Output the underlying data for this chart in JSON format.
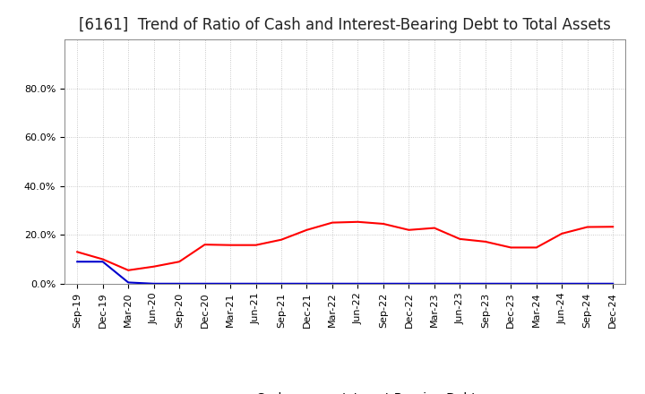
{
  "title": "[6161]  Trend of Ratio of Cash and Interest-Bearing Debt to Total Assets",
  "x_labels": [
    "Sep-19",
    "Dec-19",
    "Mar-20",
    "Jun-20",
    "Sep-20",
    "Dec-20",
    "Mar-21",
    "Jun-21",
    "Sep-21",
    "Dec-21",
    "Mar-22",
    "Jun-22",
    "Sep-22",
    "Dec-22",
    "Mar-23",
    "Jun-23",
    "Sep-23",
    "Dec-23",
    "Mar-24",
    "Jun-24",
    "Sep-24",
    "Dec-24"
  ],
  "cash": [
    0.13,
    0.1,
    0.055,
    0.07,
    0.09,
    0.16,
    0.158,
    0.158,
    0.18,
    0.22,
    0.25,
    0.253,
    0.245,
    0.22,
    0.228,
    0.183,
    0.172,
    0.148,
    0.148,
    0.205,
    0.232,
    0.233
  ],
  "interest_bearing_debt": [
    0.09,
    0.09,
    0.005,
    0.0,
    0.0,
    0.0,
    0.0,
    0.0,
    0.0,
    0.0,
    0.0,
    0.0,
    0.0,
    0.0,
    0.0,
    0.0,
    0.0,
    0.0,
    0.0,
    0.0,
    0.0,
    0.0
  ],
  "cash_color": "#ff0000",
  "debt_color": "#0000cc",
  "bg_color": "#ffffff",
  "plot_bg_color": "#ffffff",
  "grid_color": "#bbbbbb",
  "ylim_min": 0.0,
  "ylim_max": 1.0,
  "yticks": [
    0.0,
    0.2,
    0.4,
    0.6,
    0.8
  ],
  "ytick_labels": [
    "0.0%",
    "20.0%",
    "40.0%",
    "60.0%",
    "80.0%"
  ],
  "legend_cash": "Cash",
  "legend_debt": "Interest-Bearing Debt",
  "title_fontsize": 12,
  "tick_fontsize": 8,
  "legend_fontsize": 10,
  "line_width": 1.5
}
